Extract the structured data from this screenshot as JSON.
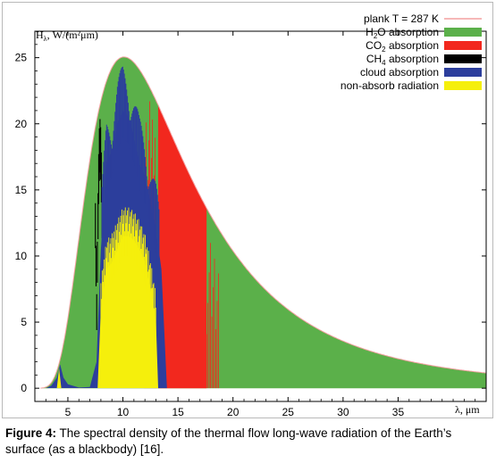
{
  "chart_data": {
    "type": "area",
    "ylabel": "H",
    "ylabel_sub": "λ",
    "ylabel_units": ", W/(m²μm)",
    "xlabel": "λ, μm",
    "xlim": [
      2,
      43
    ],
    "ylim": [
      -1,
      27
    ],
    "x_ticks": [
      5,
      10,
      15,
      20,
      25,
      30,
      35
    ],
    "y_ticks": [
      0,
      5,
      10,
      15,
      20,
      25
    ],
    "planck_temperature_K": 287,
    "legend_placement": "top-right",
    "legend": [
      {
        "id": "planck",
        "label": "plank T = 287 K",
        "color": "#f4a0a0",
        "kind": "line"
      },
      {
        "id": "h2o",
        "label_main": "H",
        "label_sub": "2",
        "label_rest": "O absorption",
        "color": "#5bb04a",
        "kind": "box"
      },
      {
        "id": "co2",
        "label_main": "CO",
        "label_sub": "2",
        "label_rest": " absorption",
        "color": "#f2281e",
        "kind": "box"
      },
      {
        "id": "ch4",
        "label_main": "CH",
        "label_sub": "4",
        "label_rest": " absorption",
        "color": "#000000",
        "kind": "box"
      },
      {
        "id": "cloud",
        "label": "cloud absorption",
        "color": "#2c3e9c",
        "kind": "box"
      },
      {
        "id": "nonabs",
        "label": "non-absorb radiation",
        "color": "#f5ef0c",
        "kind": "box"
      }
    ],
    "series": [
      {
        "id": "co2",
        "name": "CO2 absorption",
        "bands": [
          [
            13.2,
            17.6
          ]
        ],
        "x_range_note": "",
        "x": [],
        "y": []
      },
      {
        "id": "cloud",
        "name": "cloud absorption",
        "x": [
          3.0,
          3.5,
          4.0,
          4.3,
          4.6,
          5.0,
          6.0,
          7.0,
          7.6,
          8.0,
          8.5,
          9.0,
          9.5,
          10.0,
          10.5,
          11.0,
          11.5,
          12.0,
          12.5,
          13.0,
          13.5,
          14.0
        ],
        "y": [
          0.0,
          0.2,
          0.8,
          1.8,
          0.8,
          0.3,
          0.05,
          0.1,
          2.0,
          10.5,
          17.0,
          18.0,
          20.0,
          21.0,
          20.5,
          19.0,
          17.0,
          16.0,
          14.0,
          12.0,
          9.0,
          0.0
        ]
      },
      {
        "id": "nonabs",
        "name": "non-absorb radiation",
        "x": [
          4.0,
          4.2,
          4.4,
          7.7,
          8.0,
          8.5,
          9.0,
          9.5,
          10.0,
          10.5,
          11.0,
          11.5,
          12.0,
          12.5,
          13.0,
          13.2
        ],
        "y": [
          0.0,
          1.5,
          0.0,
          0.0,
          6.0,
          9.0,
          9.5,
          10.5,
          11.5,
          11.5,
          11.2,
          10.5,
          9.5,
          7.5,
          5.0,
          0.0
        ]
      },
      {
        "id": "ch4",
        "name": "CH4 absorption",
        "bands": [
          [
            7.5,
            8.2
          ]
        ],
        "x": [],
        "y": []
      }
    ]
  },
  "caption": {
    "label": "Figure 4:",
    "text": " The spectral density of the thermal flow long-wave radiation of the Earth’s surface (as a blackbody) [16]."
  }
}
